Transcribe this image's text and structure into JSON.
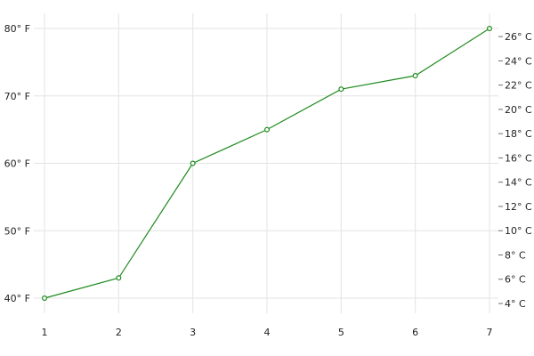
{
  "chart_data": {
    "type": "line",
    "title": "",
    "xlabel": "",
    "ylabel": "",
    "grid": true,
    "legend": "none",
    "colors": {
      "line": "#1e8a1e",
      "marker_fill": "#ffffff",
      "grid": "#e3e3e3",
      "text": "#222222"
    },
    "x": [
      1,
      2,
      3,
      4,
      5,
      6,
      7
    ],
    "x_ticks": [
      "1",
      "2",
      "3",
      "4",
      "5",
      "6",
      "7"
    ],
    "series": [
      {
        "values": [
          40,
          43,
          60,
          65,
          71,
          73,
          80
        ]
      }
    ],
    "y_left": {
      "min": 40,
      "max": 80,
      "ticks": [
        {
          "value": 40,
          "label": "40° F"
        },
        {
          "value": 50,
          "label": "50° F"
        },
        {
          "value": 60,
          "label": "60° F"
        },
        {
          "value": 70,
          "label": "70° F"
        },
        {
          "value": 80,
          "label": "80° F"
        }
      ]
    },
    "y_right": {
      "min": 4.44,
      "max": 26.67,
      "ticks": [
        {
          "value": 4,
          "label": "4° C"
        },
        {
          "value": 6,
          "label": "6° C"
        },
        {
          "value": 8,
          "label": "8° C"
        },
        {
          "value": 10,
          "label": "10° C"
        },
        {
          "value": 12,
          "label": "12° C"
        },
        {
          "value": 14,
          "label": "14° C"
        },
        {
          "value": 16,
          "label": "16° C"
        },
        {
          "value": 18,
          "label": "18° C"
        },
        {
          "value": 20,
          "label": "20° C"
        },
        {
          "value": 22,
          "label": "22° C"
        },
        {
          "value": 24,
          "label": "24° C"
        },
        {
          "value": 26,
          "label": "26° C"
        }
      ]
    }
  }
}
